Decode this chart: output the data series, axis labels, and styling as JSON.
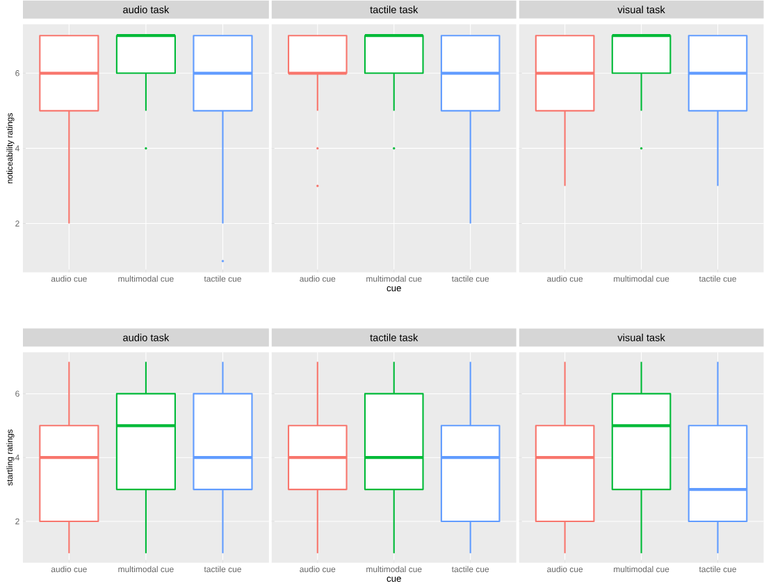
{
  "chart_data": [
    {
      "type": "box",
      "title": "audio task",
      "ylabel": "noticeability ratings",
      "categories": [
        "audio cue",
        "multimodal cue",
        "tactile cue"
      ],
      "colors": [
        "#f8766d",
        "#00ba38",
        "#619cff"
      ],
      "boxes": [
        {
          "low": 2,
          "q1": 5,
          "median": 6,
          "q3": 7,
          "high": 7
        },
        {
          "low": 5,
          "q1": 6,
          "median": 7,
          "q3": 7,
          "high": 7,
          "outliers": [
            4
          ]
        },
        {
          "low": 2,
          "q1": 5,
          "median": 6,
          "q3": 7,
          "high": 7,
          "outliers": [
            1
          ]
        }
      ],
      "ylim": [
        0.7,
        7.3
      ],
      "yticks": [
        2,
        4,
        6
      ],
      "grid": true
    },
    {
      "type": "box",
      "title": "tactile task",
      "xlabel": "cue",
      "categories": [
        "audio cue",
        "multimodal cue",
        "tactile cue"
      ],
      "colors": [
        "#f8766d",
        "#00ba38",
        "#619cff"
      ],
      "boxes": [
        {
          "low": 5,
          "q1": 6,
          "median": 6,
          "q3": 7,
          "high": 7,
          "outliers": [
            4,
            3
          ]
        },
        {
          "low": 5,
          "q1": 6,
          "median": 7,
          "q3": 7,
          "high": 7,
          "outliers": [
            4
          ]
        },
        {
          "low": 2,
          "q1": 5,
          "median": 6,
          "q3": 7,
          "high": 7
        }
      ],
      "ylim": [
        0.7,
        7.3
      ],
      "yticks": [
        2,
        4,
        6
      ],
      "grid": true,
      "tick_labels": "x"
    },
    {
      "type": "box",
      "title": "visual task",
      "categories": [
        "audio cue",
        "multimodal cue",
        "tactile cue"
      ],
      "colors": [
        "#f8766d",
        "#00ba38",
        "#619cff"
      ],
      "boxes": [
        {
          "low": 3,
          "q1": 5,
          "median": 6,
          "q3": 7,
          "high": 7
        },
        {
          "low": 5,
          "q1": 6,
          "median": 7,
          "q3": 7,
          "high": 7,
          "outliers": [
            4
          ]
        },
        {
          "low": 3,
          "q1": 5,
          "median": 6,
          "q3": 7,
          "high": 7
        }
      ],
      "ylim": [
        0.7,
        7.3
      ],
      "yticks": [
        2,
        4,
        6
      ],
      "grid": true,
      "tick_labels": "x"
    },
    {
      "type": "box",
      "title": "audio task",
      "ylabel": "startling ratings",
      "categories": [
        "audio cue",
        "multimodal cue",
        "tactile cue"
      ],
      "colors": [
        "#f8766d",
        "#00ba38",
        "#619cff"
      ],
      "boxes": [
        {
          "low": 1,
          "q1": 2,
          "median": 4,
          "q3": 5,
          "high": 7
        },
        {
          "low": 1,
          "q1": 3,
          "median": 5,
          "q3": 6,
          "high": 7
        },
        {
          "low": 1,
          "q1": 3,
          "median": 4,
          "q3": 6,
          "high": 7
        }
      ],
      "ylim": [
        0.7,
        7.3
      ],
      "yticks": [
        2,
        4,
        6
      ],
      "grid": true
    },
    {
      "type": "box",
      "title": "tactile task",
      "xlabel": "cue",
      "categories": [
        "audio cue",
        "multimodal cue",
        "tactile cue"
      ],
      "colors": [
        "#f8766d",
        "#00ba38",
        "#619cff"
      ],
      "boxes": [
        {
          "low": 1,
          "q1": 3,
          "median": 4,
          "q3": 5,
          "high": 7
        },
        {
          "low": 1,
          "q1": 3,
          "median": 4,
          "q3": 6,
          "high": 7
        },
        {
          "low": 1,
          "q1": 2,
          "median": 4,
          "q3": 5,
          "high": 7
        }
      ],
      "ylim": [
        0.7,
        7.3
      ],
      "yticks": [
        2,
        4,
        6
      ],
      "grid": true,
      "tick_labels": "x"
    },
    {
      "type": "box",
      "title": "visual task",
      "categories": [
        "audio cue",
        "multimodal cue",
        "tactile cue"
      ],
      "colors": [
        "#f8766d",
        "#00ba38",
        "#619cff"
      ],
      "boxes": [
        {
          "low": 1,
          "q1": 2,
          "median": 4,
          "q3": 5,
          "high": 7
        },
        {
          "low": 1,
          "q1": 3,
          "median": 5,
          "q3": 6,
          "high": 7
        },
        {
          "low": 1,
          "q1": 2,
          "median": 3,
          "q3": 5,
          "high": 7
        }
      ],
      "ylim": [
        0.7,
        7.3
      ],
      "yticks": [
        2,
        4,
        6
      ],
      "grid": true,
      "tick_labels": "x"
    }
  ]
}
